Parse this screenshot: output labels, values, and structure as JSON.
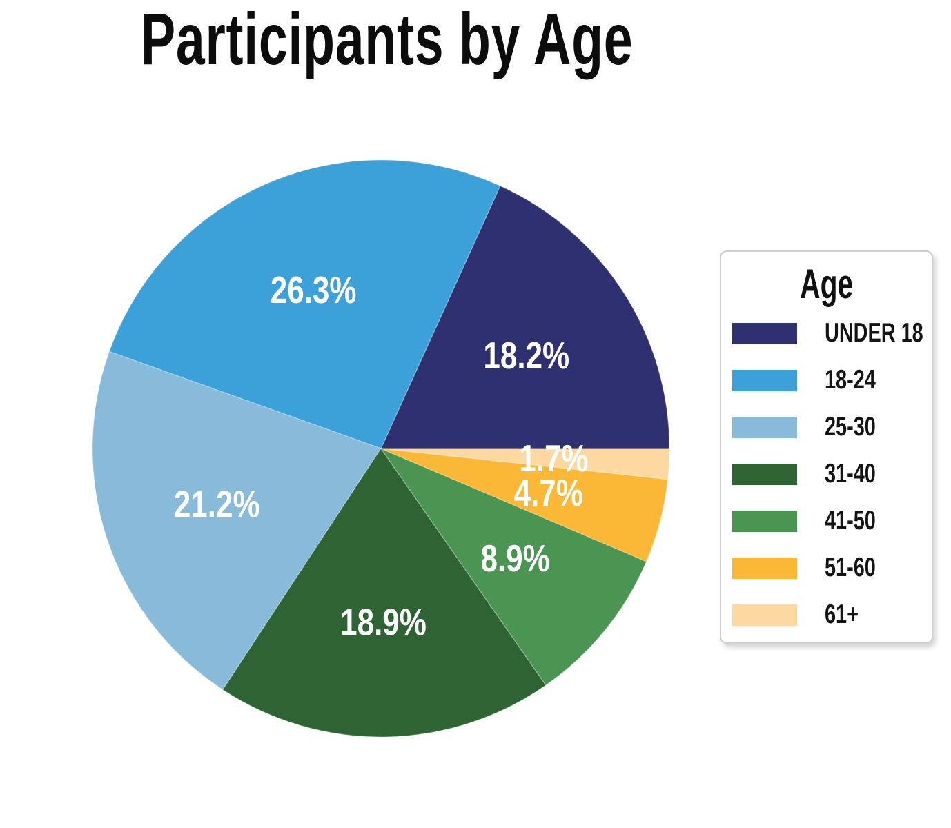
{
  "page": {
    "background_color": "#ffffff"
  },
  "chart_data": {
    "type": "pie",
    "title": "Participants by Age",
    "legend_title": "Age",
    "legend_position": "right",
    "start_angle_deg": 0,
    "direction": "counterclockwise",
    "label_radius_fraction": 0.6,
    "categories": [
      "UNDER 18",
      "18-24",
      "25-30",
      "31-40",
      "41-50",
      "51-60",
      "61+"
    ],
    "values": [
      18.2,
      26.3,
      21.2,
      18.9,
      8.9,
      4.7,
      1.7
    ],
    "slice_labels": [
      "18.2%",
      "26.3%",
      "21.2%",
      "18.9%",
      "8.9%",
      "4.7%",
      "1.7%"
    ],
    "colors": [
      "#2e306f",
      "#3ba1d8",
      "#88bad9",
      "#2e6433",
      "#4a9552",
      "#fab836",
      "#fcd9a0"
    ],
    "label_text_color": "#ffffff"
  }
}
